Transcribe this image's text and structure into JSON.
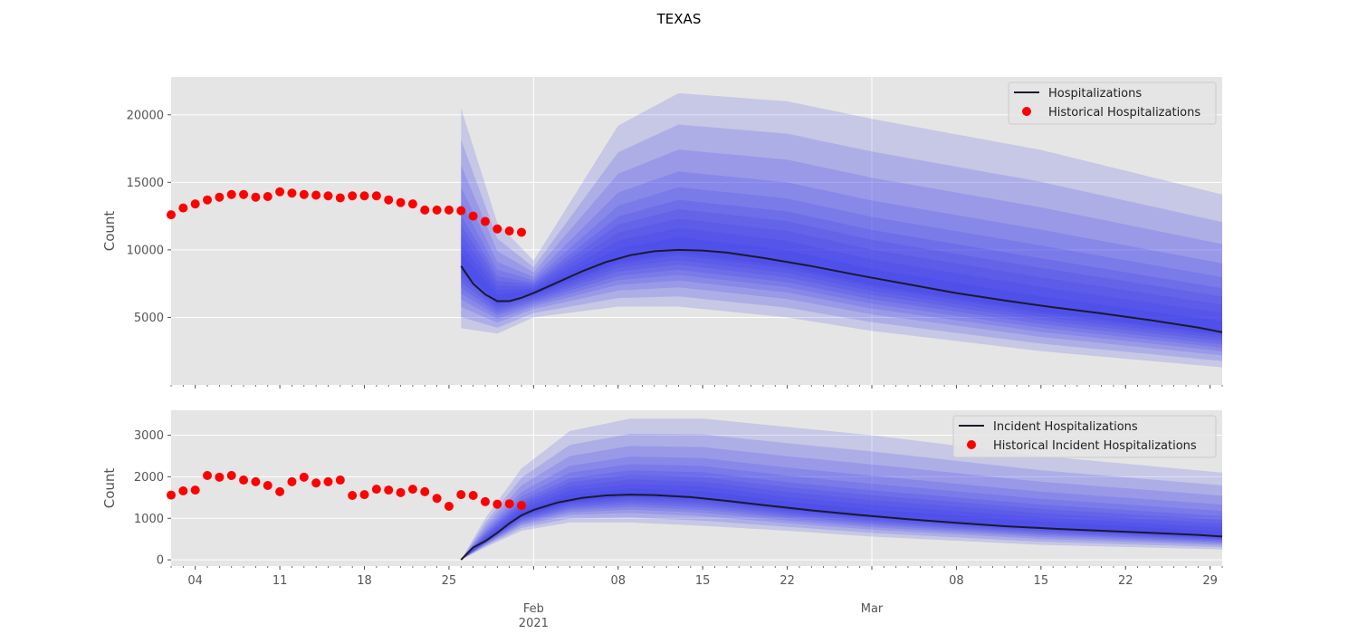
{
  "figure_title": "TEXAS",
  "colors": {
    "panel_background": "#e5e5e5",
    "grid": "#ffffff",
    "median_line": "#1a1a2e",
    "fan_fill": "#3333ee",
    "historical_points": "#ff0000"
  },
  "x_axis": {
    "date_range": [
      "2021-01-02",
      "2021-03-30"
    ],
    "major_ticks": [
      {
        "date": "2021-01-04",
        "label": "04"
      },
      {
        "date": "2021-01-11",
        "label": "11"
      },
      {
        "date": "2021-01-18",
        "label": "18"
      },
      {
        "date": "2021-01-25",
        "label": "25"
      },
      {
        "date": "2021-02-08",
        "label": "08"
      },
      {
        "date": "2021-02-15",
        "label": "15"
      },
      {
        "date": "2021-02-22",
        "label": "22"
      },
      {
        "date": "2021-03-08",
        "label": "08"
      },
      {
        "date": "2021-03-15",
        "label": "15"
      },
      {
        "date": "2021-03-22",
        "label": "22"
      },
      {
        "date": "2021-03-29",
        "label": "29"
      }
    ],
    "month_ticks": [
      {
        "date": "2021-02-01",
        "label": "Feb",
        "sublabel": "2021"
      },
      {
        "date": "2021-03-01",
        "label": "Mar",
        "sublabel": ""
      }
    ]
  },
  "chart_data": [
    {
      "type": "area",
      "ylabel": "Count",
      "ylim": [
        0,
        22800
      ],
      "yticks": [
        5000,
        10000,
        15000,
        20000
      ],
      "grid": true,
      "legend_position": "top-right",
      "forecast_start": "2021-01-26",
      "median_series": {
        "name": "Hospitalizations",
        "points": [
          [
            "2021-01-26",
            8800
          ],
          [
            "2021-01-27",
            7500
          ],
          [
            "2021-01-28",
            6700
          ],
          [
            "2021-01-29",
            6200
          ],
          [
            "2021-01-30",
            6200
          ],
          [
            "2021-01-31",
            6450
          ],
          [
            "2021-02-01",
            6800
          ],
          [
            "2021-02-03",
            7600
          ],
          [
            "2021-02-05",
            8400
          ],
          [
            "2021-02-07",
            9100
          ],
          [
            "2021-02-09",
            9600
          ],
          [
            "2021-02-11",
            9900
          ],
          [
            "2021-02-13",
            10000
          ],
          [
            "2021-02-15",
            9950
          ],
          [
            "2021-02-17",
            9800
          ],
          [
            "2021-02-20",
            9400
          ],
          [
            "2021-02-24",
            8800
          ],
          [
            "2021-02-28",
            8100
          ],
          [
            "2021-03-04",
            7450
          ],
          [
            "2021-03-08",
            6800
          ],
          [
            "2021-03-12",
            6250
          ],
          [
            "2021-03-16",
            5750
          ],
          [
            "2021-03-20",
            5300
          ],
          [
            "2021-03-24",
            4800
          ],
          [
            "2021-03-28",
            4250
          ],
          [
            "2021-03-30",
            3900
          ]
        ]
      },
      "fan_bands": {
        "dates": [
          "2021-01-26",
          "2021-01-29",
          "2021-02-01",
          "2021-02-08",
          "2021-02-13",
          "2021-02-22",
          "2021-03-01",
          "2021-03-15",
          "2021-03-30"
        ],
        "median": [
          8800,
          6200,
          6800,
          9300,
          10000,
          9000,
          7600,
          5600,
          3900
        ],
        "upper_outer": [
          20500,
          12000,
          9200,
          19200,
          21600,
          21000,
          19700,
          17400,
          14100
        ],
        "lower_outer": [
          4200,
          3800,
          5000,
          5800,
          5800,
          5000,
          4000,
          2500,
          1300
        ],
        "upper_fractions": [
          1,
          0.8,
          0.64,
          0.5,
          0.4,
          0.32,
          0.26,
          0.2,
          0.14,
          0.08
        ],
        "lower_fractions": [
          1,
          0.82,
          0.66,
          0.54,
          0.44,
          0.35,
          0.26,
          0.18,
          0.1,
          0.05
        ]
      },
      "scatter_series": {
        "name": "Historical Hospitalizations",
        "points": [
          [
            "2021-01-02",
            12600
          ],
          [
            "2021-01-03",
            13100
          ],
          [
            "2021-01-04",
            13400
          ],
          [
            "2021-01-05",
            13700
          ],
          [
            "2021-01-06",
            13900
          ],
          [
            "2021-01-07",
            14100
          ],
          [
            "2021-01-08",
            14100
          ],
          [
            "2021-01-09",
            13900
          ],
          [
            "2021-01-10",
            13950
          ],
          [
            "2021-01-11",
            14300
          ],
          [
            "2021-01-12",
            14200
          ],
          [
            "2021-01-13",
            14100
          ],
          [
            "2021-01-14",
            14050
          ],
          [
            "2021-01-15",
            14000
          ],
          [
            "2021-01-16",
            13850
          ],
          [
            "2021-01-17",
            14000
          ],
          [
            "2021-01-18",
            14000
          ],
          [
            "2021-01-19",
            14000
          ],
          [
            "2021-01-20",
            13700
          ],
          [
            "2021-01-21",
            13500
          ],
          [
            "2021-01-22",
            13400
          ],
          [
            "2021-01-23",
            12950
          ],
          [
            "2021-01-24",
            12950
          ],
          [
            "2021-01-25",
            12950
          ],
          [
            "2021-01-26",
            12900
          ],
          [
            "2021-01-27",
            12500
          ],
          [
            "2021-01-28",
            12100
          ],
          [
            "2021-01-29",
            11550
          ],
          [
            "2021-01-30",
            11400
          ],
          [
            "2021-01-31",
            11300
          ]
        ]
      }
    },
    {
      "type": "area",
      "ylabel": "Count",
      "ylim": [
        -150,
        3600
      ],
      "yticks": [
        0,
        1000,
        2000,
        3000
      ],
      "grid": true,
      "legend_position": "top-right",
      "forecast_start": "2021-01-26",
      "median_series": {
        "name": "Incident Hospitalizations",
        "points": [
          [
            "2021-01-26",
            0
          ],
          [
            "2021-01-27",
            300
          ],
          [
            "2021-01-28",
            450
          ],
          [
            "2021-01-29",
            650
          ],
          [
            "2021-01-30",
            880
          ],
          [
            "2021-01-31",
            1070
          ],
          [
            "2021-02-01",
            1200
          ],
          [
            "2021-02-03",
            1380
          ],
          [
            "2021-02-05",
            1490
          ],
          [
            "2021-02-07",
            1550
          ],
          [
            "2021-02-09",
            1570
          ],
          [
            "2021-02-11",
            1560
          ],
          [
            "2021-02-14",
            1510
          ],
          [
            "2021-02-17",
            1420
          ],
          [
            "2021-02-20",
            1320
          ],
          [
            "2021-02-24",
            1190
          ],
          [
            "2021-02-28",
            1080
          ],
          [
            "2021-03-04",
            980
          ],
          [
            "2021-03-08",
            890
          ],
          [
            "2021-03-12",
            810
          ],
          [
            "2021-03-16",
            750
          ],
          [
            "2021-03-20",
            700
          ],
          [
            "2021-03-24",
            650
          ],
          [
            "2021-03-28",
            600
          ],
          [
            "2021-03-30",
            560
          ]
        ]
      },
      "fan_bands": {
        "dates": [
          "2021-01-26",
          "2021-01-28",
          "2021-01-31",
          "2021-02-04",
          "2021-02-09",
          "2021-02-15",
          "2021-02-22",
          "2021-03-01",
          "2021-03-15",
          "2021-03-30"
        ],
        "median": [
          0,
          450,
          1070,
          1430,
          1570,
          1500,
          1240,
          1050,
          780,
          560
        ],
        "upper_outer": [
          0,
          1000,
          2200,
          3100,
          3400,
          3400,
          3200,
          3000,
          2500,
          2100
        ],
        "lower_outer": [
          0,
          300,
          700,
          900,
          900,
          820,
          700,
          560,
          360,
          250
        ],
        "upper_fractions": [
          1,
          0.8,
          0.64,
          0.5,
          0.4,
          0.32,
          0.26,
          0.2,
          0.14,
          0.08
        ],
        "lower_fractions": [
          1,
          0.82,
          0.66,
          0.54,
          0.44,
          0.35,
          0.26,
          0.18,
          0.1,
          0.05
        ]
      },
      "scatter_series": {
        "name": "Historical Incident Hospitalizations",
        "points": [
          [
            "2021-01-02",
            1560
          ],
          [
            "2021-01-03",
            1660
          ],
          [
            "2021-01-04",
            1680
          ],
          [
            "2021-01-05",
            2030
          ],
          [
            "2021-01-06",
            1990
          ],
          [
            "2021-01-07",
            2030
          ],
          [
            "2021-01-08",
            1920
          ],
          [
            "2021-01-09",
            1880
          ],
          [
            "2021-01-10",
            1790
          ],
          [
            "2021-01-11",
            1640
          ],
          [
            "2021-01-12",
            1880
          ],
          [
            "2021-01-13",
            1990
          ],
          [
            "2021-01-14",
            1850
          ],
          [
            "2021-01-15",
            1880
          ],
          [
            "2021-01-16",
            1920
          ],
          [
            "2021-01-17",
            1550
          ],
          [
            "2021-01-18",
            1570
          ],
          [
            "2021-01-19",
            1700
          ],
          [
            "2021-01-20",
            1680
          ],
          [
            "2021-01-21",
            1620
          ],
          [
            "2021-01-22",
            1700
          ],
          [
            "2021-01-23",
            1640
          ],
          [
            "2021-01-24",
            1480
          ],
          [
            "2021-01-25",
            1290
          ],
          [
            "2021-01-26",
            1570
          ],
          [
            "2021-01-27",
            1550
          ],
          [
            "2021-01-28",
            1400
          ],
          [
            "2021-01-29",
            1340
          ],
          [
            "2021-01-30",
            1350
          ],
          [
            "2021-01-31",
            1310
          ]
        ]
      }
    }
  ]
}
